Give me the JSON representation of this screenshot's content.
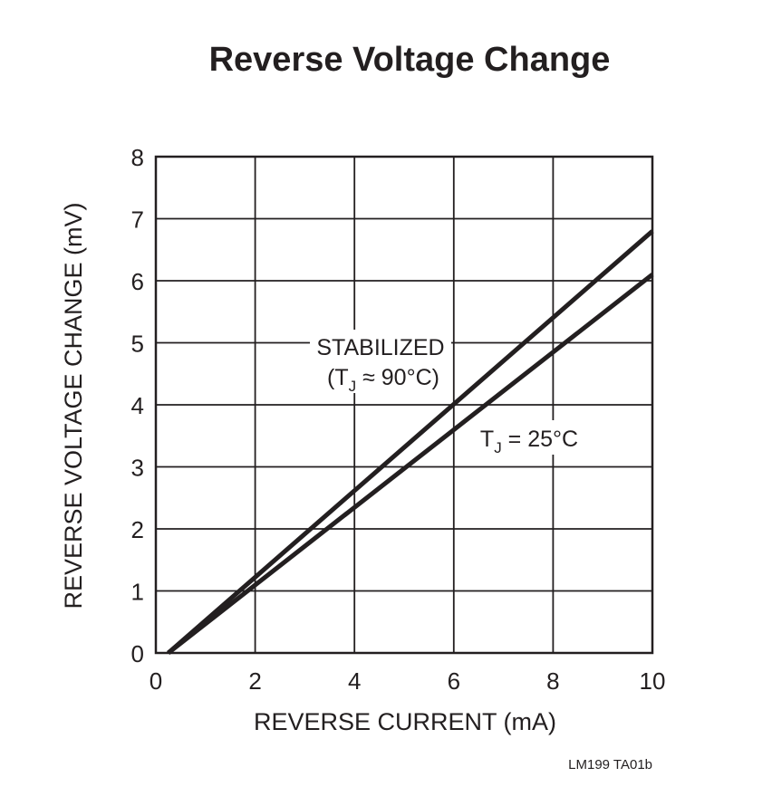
{
  "chart_data": {
    "type": "line",
    "title": "Reverse Voltage Change",
    "xlabel": "REVERSE CURRENT (mA)",
    "ylabel": "REVERSE VOLTAGE CHANGE (mV)",
    "xlim": [
      0,
      10
    ],
    "ylim": [
      0,
      8
    ],
    "xticks": [
      "0",
      "2",
      "4",
      "6",
      "8",
      "10"
    ],
    "yticks": [
      "0",
      "1",
      "2",
      "3",
      "4",
      "5",
      "6",
      "7",
      "8"
    ],
    "grid": true,
    "series": [
      {
        "name": "STABILIZED (TJ ≈ 90°C)",
        "x": [
          0.25,
          10
        ],
        "y": [
          0,
          6.8
        ]
      },
      {
        "name": "TJ = 25°C",
        "x": [
          0.25,
          10
        ],
        "y": [
          0,
          6.1
        ]
      }
    ],
    "annotations": {
      "stabilized_line1": "STABILIZED",
      "stabilized_line2_open": "(T",
      "stabilized_line2_sub": "J",
      "stabilized_line2_rest": " ≈ 90°C)",
      "t25_main": "T",
      "t25_sub": "J",
      "t25_rest": " = 25°C"
    },
    "figure_id": "LM199 TA01b",
    "colors": {
      "line": "#231f20",
      "grid": "#231f20",
      "background": "#ffffff"
    }
  }
}
